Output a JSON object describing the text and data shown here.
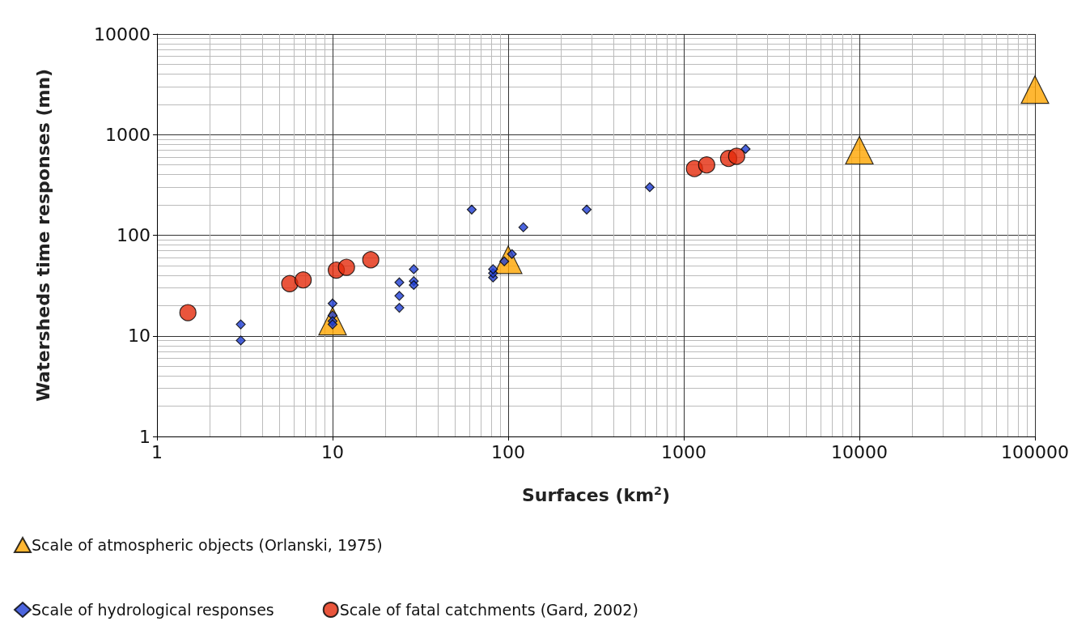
{
  "chart_data": {
    "type": "scatter",
    "xlabel": "Surfaces (km$^{2}$)",
    "ylabel": "Watersheds time responses (mn)",
    "log": "xy",
    "grid": true,
    "legend": "bottom left",
    "xlim": [
      1,
      100000
    ],
    "xticks": [
      1,
      10,
      100,
      1000,
      10000,
      100000
    ],
    "ylim": [
      1,
      10000
    ],
    "yticks": [
      1,
      10,
      100,
      1000,
      10000
    ],
    "series": [
      {
        "name": "Scale of atmospheric objects (Orlanski, 1975)",
        "color": "#ffa500",
        "marker": "triangle",
        "x": [
          10,
          100,
          10000,
          100000
        ],
        "values": [
          14,
          57,
          700,
          2800
        ]
      },
      {
        "name": "Scale of hydrological responses",
        "color": "#1f3fd6",
        "marker": "diamond",
        "x": [
          3,
          3,
          10,
          10,
          10,
          10,
          24,
          24,
          24,
          29,
          29,
          29,
          62,
          82,
          82,
          82,
          95,
          105,
          122,
          280,
          640,
          2250
        ],
        "values": [
          13,
          9,
          21,
          16,
          14,
          13,
          34,
          25,
          19,
          46,
          35,
          32,
          180,
          38,
          42,
          46,
          55,
          65,
          120,
          180,
          300,
          720
        ]
      },
      {
        "name": "Scale of fatal catchments (Gard, 2002)",
        "color": "#e32b0b",
        "marker": "circle",
        "x": [
          1.5,
          5.7,
          6.8,
          10.5,
          12,
          16.5,
          1150,
          1350,
          1800,
          2000
        ],
        "values": [
          17,
          33,
          36,
          45,
          48,
          57,
          460,
          500,
          580,
          610
        ]
      }
    ]
  }
}
